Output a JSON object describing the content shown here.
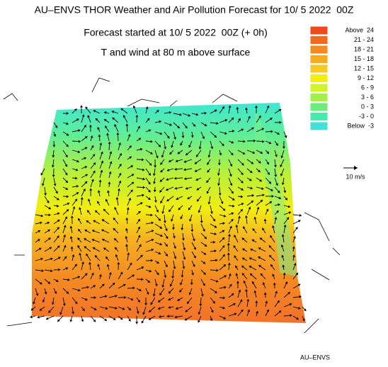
{
  "header": {
    "title": "AU–ENVS THOR Weather and Air Pollution Forecast for 10/ 5 2022  00Z",
    "subtitle": "Forecast started at 10/ 5 2022  00Z (+ 0h)",
    "field": "T and wind at 80 m above surface"
  },
  "legend": {
    "items": [
      {
        "label": "Above  24",
        "color": "#f04a1a"
      },
      {
        "label": "21 - 24",
        "color": "#f26a22"
      },
      {
        "label": "18 - 21",
        "color": "#f48a22"
      },
      {
        "label": "15 - 18",
        "color": "#f6aa22"
      },
      {
        "label": "12 - 15",
        "color": "#f6ca22"
      },
      {
        "label": "9 - 12",
        "color": "#f4ee10"
      },
      {
        "label": "6 - 9",
        "color": "#d2f22a"
      },
      {
        "label": "3 - 6",
        "color": "#a2f048"
      },
      {
        "label": "0 - 3",
        "color": "#6cee7c"
      },
      {
        "label": "-3 - 0",
        "color": "#46eaaa"
      },
      {
        "label": "Below  -3",
        "color": "#40e2d8"
      }
    ]
  },
  "wind_scale": "10 m/s",
  "footer": "AU–ENVS"
}
